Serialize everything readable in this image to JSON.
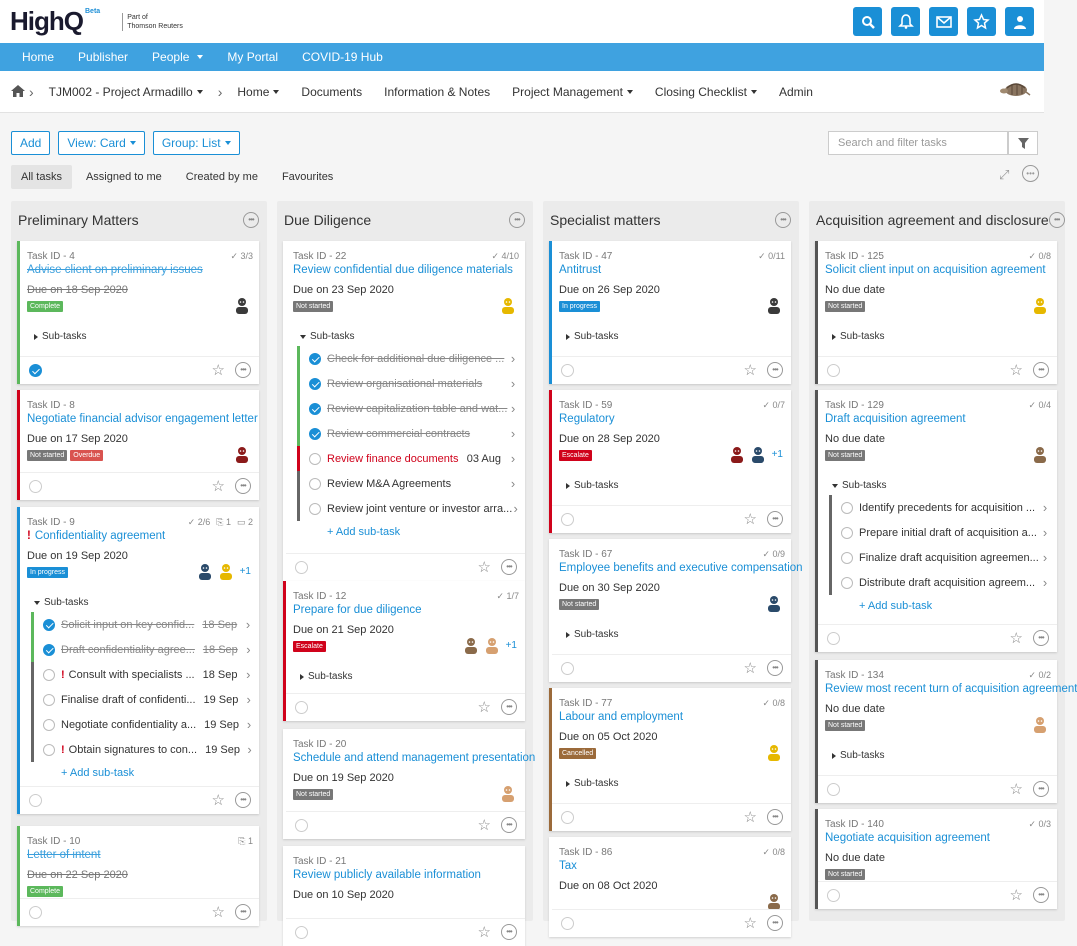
{
  "brand": {
    "name": "HighQ",
    "beta": "Beta",
    "sub1": "Part of",
    "sub2": "Thomson Reuters"
  },
  "colors": {
    "accent": "#1a8fd6",
    "nav": "#3fa2e0",
    "complete": "#5cb85c",
    "notStarted": "#777777",
    "overdue": "#d9534f",
    "inProgress": "#1a8fd6",
    "escalate": "#d0021b",
    "cancelled": "#9b6a3a"
  },
  "topicons": [
    "search-icon",
    "bell-icon",
    "mail-icon",
    "star-icon",
    "user-icon"
  ],
  "mainnav": [
    {
      "label": "Home"
    },
    {
      "label": "Publisher"
    },
    {
      "label": "People",
      "dropdown": true
    },
    {
      "label": "My Portal"
    },
    {
      "label": "COVID-19 Hub"
    }
  ],
  "subnav": {
    "project": "TJM002 - Project Armadillo",
    "items": [
      {
        "label": "Home",
        "dropdown": true
      },
      {
        "label": "Documents"
      },
      {
        "label": "Information & Notes"
      },
      {
        "label": "Project Management",
        "dropdown": true
      },
      {
        "label": "Closing Checklist",
        "dropdown": true
      },
      {
        "label": "Admin"
      }
    ]
  },
  "toolbar": {
    "add": "Add",
    "view": "View: Card",
    "group": "Group: List"
  },
  "search": {
    "placeholder": "Search and filter tasks"
  },
  "tabs": [
    "All tasks",
    "Assigned to me",
    "Created by me",
    "Favourites"
  ],
  "columns": [
    {
      "title": "Preliminary Matters",
      "cards": [
        {
          "id": "Task ID - 4",
          "meta": "3/3",
          "title": "Advise client on preliminary issues",
          "done": true,
          "due": "Due on 18 Sep 2020",
          "badges": [
            {
              "label": "Complete",
              "color": "#5cb85c"
            }
          ],
          "avatars": [
            "#555"
          ],
          "subtasks": "Sub-tasks",
          "checked": true,
          "border": "#5cb85c"
        },
        {
          "id": "Task ID - 8",
          "title": "Negotiate financial advisor engagement letter",
          "due": "Due on 17 Sep 2020",
          "badges": [
            {
              "label": "Not started",
              "color": "#777"
            },
            {
              "label": "Overdue",
              "color": "#d9534f"
            }
          ],
          "avatars": [
            "#8b1a1a"
          ],
          "border": "#d0021b"
        },
        {
          "id": "Task ID - 9",
          "meta1": "2/6",
          "meta2": "1",
          "meta3": "2",
          "title": "Confidentiality agreement",
          "urgent": true,
          "due": "Due on 19 Sep 2020",
          "badges": [
            {
              "label": "In progress",
              "color": "#1a8fd6"
            }
          ],
          "plus": "+1",
          "subtasks": "Sub-tasks",
          "border": "#1a8fd6",
          "subs": [
            {
              "t": "Solicit input on key confid...",
              "d": "18 Sep",
              "done": true,
              "c": "#5cb85c"
            },
            {
              "t": "Draft confidentiality agree...",
              "d": "18 Sep",
              "done": true,
              "c": "#5cb85c"
            },
            {
              "t": "Consult with specialists ...",
              "d": "18 Sep",
              "urgent": true,
              "c": "#666"
            },
            {
              "t": "Finalise draft of confidenti...",
              "d": "19 Sep",
              "c": "#666"
            },
            {
              "t": "Negotiate confidentiality a...",
              "d": "19 Sep",
              "c": "#666"
            },
            {
              "t": "Obtain signatures to con...",
              "d": "19 Sep",
              "urgent": true,
              "c": "#666"
            }
          ],
          "addsub": "+ Add sub-task"
        },
        {
          "id": "Task ID - 10",
          "meta": "1",
          "title": "Letter of intent",
          "done": true,
          "due": "Due on 22 Sep 2020",
          "badges": [
            {
              "label": "Complete",
              "color": "#5cb85c"
            }
          ],
          "border": "#5cb85c"
        }
      ]
    },
    {
      "title": "Due Diligence",
      "cards": [
        {
          "id": "Task ID - 22",
          "meta": "4/10",
          "title": "Review confidential due diligence materials",
          "due": "Due on 23 Sep 2020",
          "badges": [
            {
              "label": "Not started",
              "color": "#777"
            }
          ],
          "subtasks": "Sub-tasks",
          "border": "#fff",
          "subs": [
            {
              "t": "Check for additional due diligence ...",
              "done": true,
              "c": "#5cb85c"
            },
            {
              "t": "Review organisational materials",
              "done": true,
              "c": "#5cb85c"
            },
            {
              "t": "Review capitalization table and wat...",
              "done": true,
              "c": "#5cb85c"
            },
            {
              "t": "Review commercial contracts",
              "done": true,
              "c": "#5cb85c"
            },
            {
              "t": "Review finance documents",
              "d": "03 Aug",
              "c": "#d0021b",
              "red": true
            },
            {
              "t": "Review M&A Agreements",
              "c": "#666"
            },
            {
              "t": "Review joint venture or investor arra...",
              "c": "#666"
            }
          ],
          "addsub": "+ Add sub-task"
        },
        {
          "id": "Task ID - 12",
          "meta": "1/7",
          "title": "Prepare for due diligence",
          "due": "Due on 21 Sep 2020",
          "badges": [
            {
              "label": "Escalate",
              "color": "#d0021b"
            }
          ],
          "plus": "+1",
          "subtasks": "Sub-tasks",
          "border": "#d0021b"
        },
        {
          "id": "Task ID - 20",
          "title": "Schedule and attend management presentation",
          "due": "Due on 19 Sep 2020",
          "badges": [
            {
              "label": "Not started",
              "color": "#777"
            }
          ],
          "border": "#fff"
        },
        {
          "id": "Task ID - 21",
          "title": "Review publicly available information",
          "due": "Due on 10 Sep 2020",
          "border": "#fff"
        }
      ]
    },
    {
      "title": "Specialist matters",
      "cards": [
        {
          "id": "Task ID - 47",
          "meta": "0/11",
          "title": "Antitrust",
          "due": "Due on 26 Sep 2020",
          "badges": [
            {
              "label": "In progress",
              "color": "#1a8fd6"
            }
          ],
          "subtasks": "Sub-tasks",
          "border": "#1a8fd6"
        },
        {
          "id": "Task ID - 59",
          "meta": "0/7",
          "title": "Regulatory",
          "due": "Due on 28 Sep 2020",
          "badges": [
            {
              "label": "Escalate",
              "color": "#d0021b"
            }
          ],
          "plus": "+1",
          "subtasks": "Sub-tasks",
          "border": "#d0021b"
        },
        {
          "id": "Task ID - 67",
          "meta": "0/9",
          "title": "Employee benefits and executive compensation",
          "due": "Due on 30 Sep 2020",
          "badges": [
            {
              "label": "Not started",
              "color": "#777"
            }
          ],
          "subtasks": "Sub-tasks",
          "border": "#fff"
        },
        {
          "id": "Task ID - 77",
          "meta": "0/8",
          "title": "Labour and employment",
          "due": "Due on 05 Oct 2020",
          "badges": [
            {
              "label": "Cancelled",
              "color": "#9b6a3a"
            }
          ],
          "subtasks": "Sub-tasks",
          "border": "#9b6a3a"
        },
        {
          "id": "Task ID - 86",
          "meta": "0/8",
          "title": "Tax",
          "due": "Due on 08 Oct 2020",
          "border": "#fff"
        }
      ]
    },
    {
      "title": "Acquisition agreement and disclosure",
      "cards": [
        {
          "id": "Task ID - 125",
          "meta": "0/8",
          "title": "Solicit client input on acquisition agreement",
          "due": "No due date",
          "badges": [
            {
              "label": "Not started",
              "color": "#777"
            }
          ],
          "subtasks": "Sub-tasks",
          "border": "#555"
        },
        {
          "id": "Task ID - 129",
          "meta": "0/4",
          "title": "Draft acquisition agreement",
          "due": "No due date",
          "badges": [
            {
              "label": "Not started",
              "color": "#777"
            }
          ],
          "subtasks": "Sub-tasks",
          "border": "#555",
          "subs": [
            {
              "t": "Identify precedents for acquisition ...",
              "c": "#666"
            },
            {
              "t": "Prepare initial draft of acquisition a...",
              "c": "#666"
            },
            {
              "t": "Finalize draft acquisition agreemen...",
              "c": "#666"
            },
            {
              "t": "Distribute draft acquisition agreem...",
              "c": "#666"
            }
          ],
          "addsub": "+ Add sub-task"
        },
        {
          "id": "Task ID - 134",
          "meta": "0/2",
          "title": "Review most recent turn of acquisition agreement",
          "due": "No due date",
          "badges": [
            {
              "label": "Not started",
              "color": "#777"
            }
          ],
          "subtasks": "Sub-tasks",
          "border": "#555"
        },
        {
          "id": "Task ID - 140",
          "meta": "0/3",
          "title": "Negotiate acquisition agreement",
          "due": "No due date",
          "badges": [
            {
              "label": "Not started",
              "color": "#777"
            }
          ],
          "border": "#555"
        }
      ]
    }
  ]
}
